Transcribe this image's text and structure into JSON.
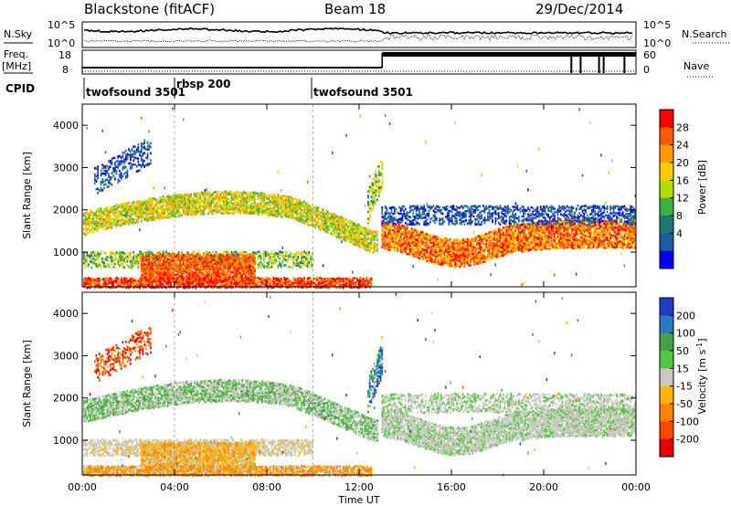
{
  "header": {
    "station": "Blackstone (fitACF)",
    "beam": "Beam 18",
    "date": "29/Dec/2014"
  },
  "noise_panel": {
    "left_label": "N.Sky",
    "right_label": "N.Search",
    "left_ticks": [
      "10^5",
      "10^0"
    ],
    "right_ticks": [
      "10^5",
      "10^0"
    ]
  },
  "freq_panel": {
    "left_label_top": "Freq.",
    "left_label_bottom": "[MHz]",
    "right_label": "Nave",
    "left_ticks": [
      "18",
      "8"
    ],
    "right_ticks": [
      "60",
      "0"
    ]
  },
  "cpid": {
    "label": "CPID",
    "segments": [
      {
        "name": "twofsound 3501",
        "start_hour": 0.0
      },
      {
        "name": "rbsp 200",
        "start_hour": 4.0
      },
      {
        "name": "twofsound 3501",
        "start_hour": 10.0
      }
    ]
  },
  "time_axis": {
    "label": "Time UT",
    "ticks": [
      "00:00",
      "04:00",
      "08:00",
      "12:00",
      "16:00",
      "20:00",
      "00:00"
    ],
    "tick_hours": [
      0,
      4,
      8,
      12,
      16,
      20,
      24
    ]
  },
  "chart_data": [
    {
      "type": "heatmap",
      "name": "power",
      "ylabel": "Slant Range [km]",
      "xlabel": "",
      "xlim": [
        0,
        24
      ],
      "ylim": [
        180,
        4500
      ],
      "y_ticks": [
        "1000",
        "2000",
        "3000",
        "4000"
      ],
      "y_tick_values": [
        1000,
        2000,
        3000,
        4000
      ],
      "colorbar": {
        "label": "Power [dB]",
        "ticks": [
          "28",
          "24",
          "20",
          "16",
          "12",
          "8",
          "4"
        ],
        "colors": [
          "#ff0000",
          "#ff5a00",
          "#ff9a00",
          "#ffcc00",
          "#b4dc00",
          "#3cb43c",
          "#1e7878",
          "#1e5aa0",
          "#0000ff"
        ]
      }
    },
    {
      "type": "heatmap",
      "name": "velocity",
      "ylabel": "Slant Range [km]",
      "xlabel": "Time UT",
      "xlim": [
        0,
        24
      ],
      "ylim": [
        180,
        4500
      ],
      "y_ticks": [
        "1000",
        "2000",
        "3000",
        "4000"
      ],
      "y_tick_values": [
        1000,
        2000,
        3000,
        4000
      ],
      "colorbar": {
        "label": "Velocity [m s",
        "label_sup": "-1",
        "label_end": "]",
        "ticks": [
          "200",
          "100",
          "50",
          "15",
          "-15",
          "-50",
          "-100",
          "-200"
        ],
        "colors": [
          "#1e3cc8",
          "#2878c8",
          "#46a046",
          "#50c83c",
          "#c8c8c0",
          "#ffb400",
          "#ff8200",
          "#ff4600",
          "#e60000"
        ]
      }
    }
  ]
}
